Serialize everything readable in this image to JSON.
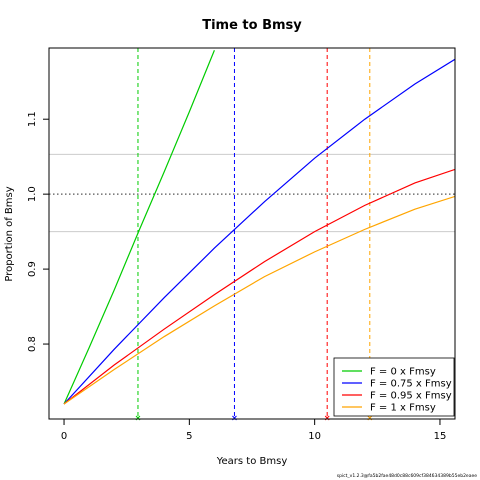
{
  "chart_data": {
    "type": "line",
    "title": "Time to Bmsy",
    "xlabel": "Years to Bmsy",
    "ylabel": "Proportion of Bmsy",
    "xlim": [
      -0.6,
      15.6
    ],
    "ylim": [
      0.7,
      1.195
    ],
    "xticks": [
      0,
      5,
      10,
      15
    ],
    "yticks": [
      0.8,
      0.9,
      1.0,
      1.1
    ],
    "xtick_labels": [
      "0",
      "5",
      "10",
      "15"
    ],
    "ytick_labels": [
      "0.8",
      "0.9",
      "1.0",
      "1.1"
    ],
    "reference_line": {
      "y": 1.0,
      "style": "dotted",
      "color": "#555555"
    },
    "ci_lines": {
      "y": [
        0.95,
        1.053
      ],
      "color": "#cccccc"
    },
    "legend_position": "bottom-right",
    "series": [
      {
        "name": "F = 0 x Fmsy",
        "color": "#00cc00",
        "x": [
          0,
          1,
          2,
          3,
          4,
          5,
          6
        ],
        "y": [
          0.72,
          0.795,
          0.872,
          0.952,
          1.03,
          1.11,
          1.192
        ],
        "time_to_bmsy": 2.95
      },
      {
        "name": "F = 0.75 x Fmsy",
        "color": "#0000ff",
        "x": [
          0,
          2,
          4,
          6,
          8,
          10,
          12,
          14,
          15.6
        ],
        "y": [
          0.72,
          0.793,
          0.862,
          0.928,
          0.99,
          1.048,
          1.1,
          1.147,
          1.18
        ],
        "time_to_bmsy": 6.8
      },
      {
        "name": "F = 0.95 x Fmsy",
        "color": "#ff0000",
        "x": [
          0,
          2,
          4,
          6,
          8,
          10,
          12,
          14,
          15.6
        ],
        "y": [
          0.72,
          0.772,
          0.82,
          0.866,
          0.91,
          0.95,
          0.985,
          1.015,
          1.033
        ],
        "time_to_bmsy": 10.5
      },
      {
        "name": "F = 1 x Fmsy",
        "color": "#ffa500",
        "x": [
          0,
          2,
          4,
          6,
          8,
          10,
          12,
          14,
          15.6
        ],
        "y": [
          0.72,
          0.766,
          0.81,
          0.851,
          0.89,
          0.923,
          0.953,
          0.98,
          0.997
        ],
        "time_to_bmsy": 12.2
      }
    ],
    "footnote": "spict_v1.2.3@fa5b2fae48d0c88c609cf384634389b55eb2eaee"
  }
}
